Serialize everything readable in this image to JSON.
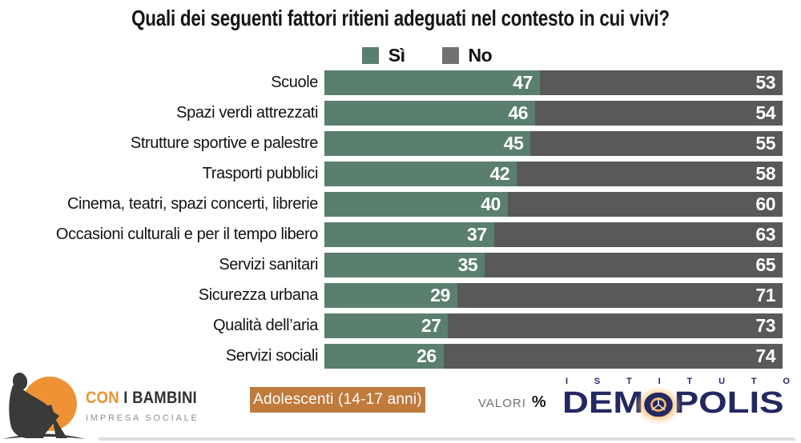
{
  "title": "Quali dei seguenti fattori ritieni adeguati nel contesto in cui vivi?",
  "legend": {
    "yes_label": "Sì",
    "no_label": "No"
  },
  "colors": {
    "yes_green": "#5a7f6e",
    "no_gray": "#595959",
    "legend_no_gray": "#717171",
    "badge_orange": "#bf7a3c",
    "logo_orange": "#ee9235",
    "demopolis_navy": "#232861"
  },
  "chart_data": {
    "type": "bar",
    "orientation": "horizontal-stacked",
    "title": "Quali dei seguenti fattori ritieni adeguati nel contesto in cui vivi?",
    "value_format": "percent",
    "xlim": [
      0,
      100
    ],
    "legend_position": "top-center",
    "categories": [
      "Scuole",
      "Spazi verdi attrezzati",
      "Strutture sportive e palestre",
      "Trasporti pubblici",
      "Cinema, teatri, spazi concerti, librerie",
      "Occasioni culturali e per il tempo libero",
      "Servizi sanitari",
      "Sicurezza urbana",
      "Qualità dell’aria",
      "Servizi sociali"
    ],
    "series": [
      {
        "name": "Sì",
        "values": [
          47,
          46,
          45,
          42,
          40,
          37,
          35,
          29,
          27,
          26
        ]
      },
      {
        "name": "No",
        "values": [
          53,
          54,
          55,
          58,
          60,
          63,
          65,
          71,
          73,
          74
        ]
      }
    ]
  },
  "footer": {
    "left_logo": {
      "line1_accent": "CON",
      "line1_rest": " I BAMBINI",
      "line2": "IMPRESA SOCIALE"
    },
    "badge_label": "Adolescenti (14-17 anni)",
    "valori_label": "VALORI",
    "valori_symbol": "%",
    "right_logo": {
      "top_word": "ISTITUTO",
      "main_part1": "DEM",
      "main_o": "O",
      "main_part2": "POLIS"
    }
  }
}
